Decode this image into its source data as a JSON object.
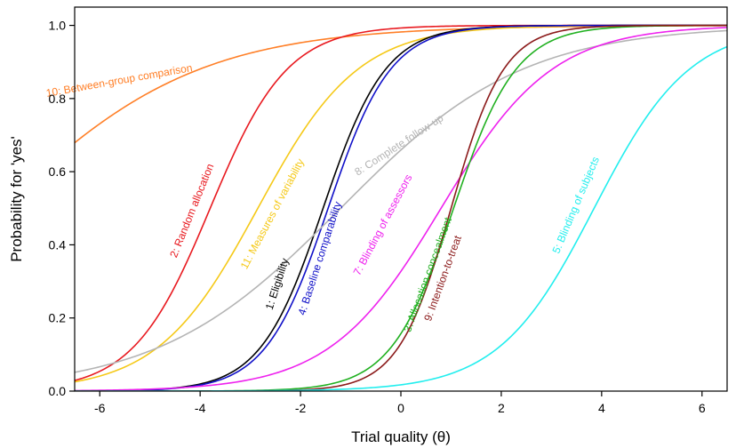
{
  "chart_data": {
    "type": "line",
    "title": "",
    "xlabel": "Trial quality (θ)",
    "ylabel": "Probability for 'yes'",
    "xlim": [
      -6.5,
      6.5
    ],
    "ylim": [
      0,
      1.05
    ],
    "xticks": [
      -6,
      -4,
      -2,
      0,
      2,
      4,
      6
    ],
    "xtick_labels": [
      "-6",
      "-4",
      "-2",
      "0",
      "2",
      "4",
      "6"
    ],
    "yticks": [
      0,
      0.2,
      0.4,
      0.6,
      0.8,
      1.0
    ],
    "ytick_labels": [
      "0.0",
      "0.2",
      "0.4",
      "0.6",
      "0.8",
      "1.0"
    ],
    "grid": false,
    "legend": "none",
    "series": [
      {
        "name": "10: Between-group comparison",
        "color": "#ff7f27",
        "b": -8.0,
        "a": 0.5,
        "label_at": [
          -5.6,
          0.84
        ],
        "label_angle": -10
      },
      {
        "name": "2: Random allocation",
        "color": "#e8191f",
        "b": -3.8,
        "a": 1.3,
        "label_at": [
          -4.1,
          0.49
        ],
        "label_angle": -68
      },
      {
        "name": "11: Measures of variability",
        "color": "#f5c918",
        "b": -2.85,
        "a": 1.0,
        "label_at": [
          -2.5,
          0.48
        ],
        "label_angle": -62
      },
      {
        "name": "1: Eligibility",
        "color": "#000000",
        "b": -1.55,
        "a": 1.6,
        "label_at": [
          -2.4,
          0.29
        ],
        "label_angle": -72
      },
      {
        "name": "4: Baseline comparability",
        "color": "#1010c8",
        "b": -1.45,
        "a": 1.6,
        "label_at": [
          -1.55,
          0.36
        ],
        "label_angle": -72
      },
      {
        "name": "8: Complete follow-up",
        "color": "#b4b4b4",
        "b": -1.2,
        "a": 0.55,
        "label_at": [
          0.0,
          0.665
        ],
        "label_angle": -33
      },
      {
        "name": "7: Blinding of assessors",
        "color": "#ee22ee",
        "b": 0.8,
        "a": 0.9,
        "label_at": [
          -0.3,
          0.45
        ],
        "label_angle": -62
      },
      {
        "name": "3: Allocation concealment",
        "color": "#20b020",
        "b": 1.05,
        "a": 1.6,
        "label_at": [
          0.6,
          0.315
        ],
        "label_angle": -70
      },
      {
        "name": "9: Intention-to-treat",
        "color": "#8b1a1a",
        "b": 1.0,
        "a": 1.9,
        "label_at": [
          0.9,
          0.305
        ],
        "label_angle": -70
      },
      {
        "name": "5: Blinding of subjects",
        "color": "#22eeee",
        "b": 3.85,
        "a": 1.05,
        "label_at": [
          3.55,
          0.505
        ],
        "label_angle": -67
      }
    ]
  }
}
